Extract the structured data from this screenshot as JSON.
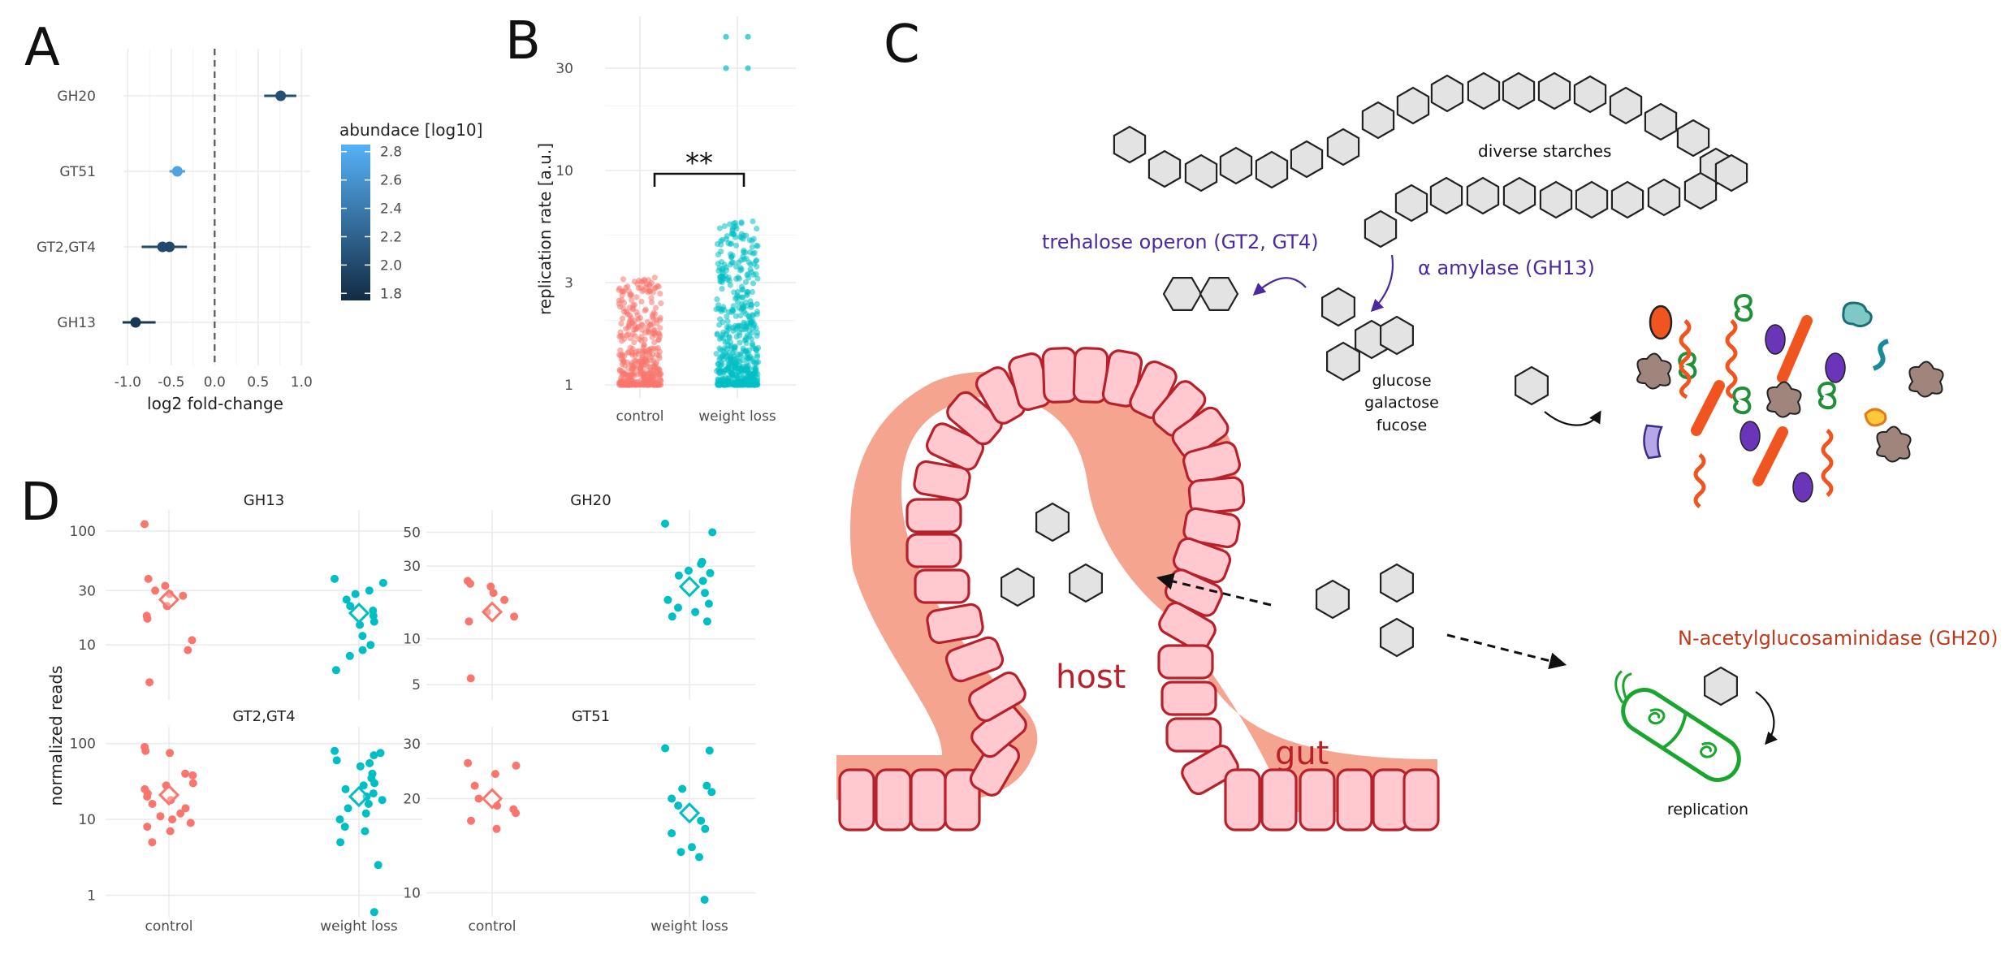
{
  "panels": {
    "A": {
      "letter": "A",
      "chart_data": {
        "type": "scatter",
        "xlabel": "log2 fold-change",
        "categories": [
          "GH20",
          "GT51",
          "GT2,GT4",
          "GH13"
        ],
        "xlim": [
          -1.05,
          1.1
        ],
        "x_ticks": [
          "-1.0",
          "-0.5",
          "0.0",
          "0.5",
          "1.0"
        ],
        "x_tick_values": [
          -1.0,
          -0.5,
          0.0,
          0.5,
          1.0
        ],
        "reference_line": 0,
        "points": [
          {
            "category": "GH20",
            "x": 0.76,
            "lo": 0.57,
            "hi": 0.94,
            "abundance": 2.05
          },
          {
            "category": "GT51",
            "x": -0.43,
            "lo": -0.52,
            "hi": -0.34,
            "abundance": 2.72
          },
          {
            "category": "GT2,GT4",
            "x": -0.6,
            "lo": -0.84,
            "hi": -0.32,
            "abundance": 2.0
          },
          {
            "category": "GT2,GT4",
            "x": -0.52,
            "lo": -0.84,
            "hi": -0.32,
            "abundance": 2.0
          },
          {
            "category": "GH13",
            "x": -0.91,
            "lo": -1.06,
            "hi": -0.68,
            "abundance": 1.85
          }
        ],
        "legend": {
          "title": "abundace [log10]",
          "ticks": [
            "2.8",
            "2.6",
            "2.4",
            "2.2",
            "2.0",
            "1.8"
          ],
          "tick_values": [
            2.8,
            2.6,
            2.4,
            2.2,
            2.0,
            1.8
          ],
          "range": [
            1.75,
            2.85
          ],
          "placement": "right",
          "colors": [
            "#132b43",
            "#56b1f7"
          ]
        },
        "grid": true
      }
    },
    "B": {
      "letter": "B",
      "chart_data": {
        "type": "scatter",
        "ylabel": "replication rate [a.u.]",
        "categories": [
          "control",
          "weight loss"
        ],
        "y_scale": "log10",
        "ylim": [
          0.95,
          48
        ],
        "y_ticks": [
          "1",
          "3",
          "10",
          "30"
        ],
        "y_tick_values": [
          1,
          3,
          10,
          30
        ],
        "series": [
          {
            "name": "control",
            "color": "#f8766d",
            "n": 420,
            "median": 1.3,
            "max": 3.2,
            "min": 1.0
          },
          {
            "name": "weight loss",
            "color": "#00bfc4",
            "n": 560,
            "median": 1.4,
            "max": 5.8,
            "min": 1.0,
            "outliers": [
              42,
              42,
              30,
              30
            ]
          }
        ],
        "significance": "**",
        "grid": true
      }
    },
    "C": {
      "letter": "C",
      "labels": {
        "starches": "diverse starches",
        "trehalose": "trehalose operon (GT2, GT4)",
        "amylase": "α amylase (GH13)",
        "glucose": "glucose",
        "galactose": "galactose",
        "fucose": "fucose",
        "host": "host",
        "gut": "gut",
        "nag": "N-acetylglucosaminidase (GH20)",
        "replication": "replication"
      },
      "colors": {
        "enzyme": "#4b2aa1",
        "gut_red": "#b8212b",
        "gut_fill": "#ffc9cf",
        "gut_halo": "#f4a38f",
        "nag": "#c0391b",
        "bacterium": "#1aa52e"
      }
    },
    "D": {
      "letter": "D",
      "ylabel": "normalized reads",
      "chart_data": [
        {
          "type": "scatter",
          "title": "GH13",
          "categories": [
            "control",
            "weight loss"
          ],
          "y_scale": "log10",
          "ylim": [
            4,
            130
          ],
          "y_ticks": [
            "10",
            "30",
            "100"
          ],
          "y_tick_values": [
            10,
            30,
            100
          ],
          "series": [
            {
              "name": "control",
              "mean": 25,
              "values": [
                115,
                38,
                33,
                30,
                28,
                27,
                22,
                18,
                17,
                11,
                9,
                4.7
              ]
            },
            {
              "name": "weight loss",
              "mean": 19,
              "values": [
                38,
                35,
                30,
                28,
                25,
                22,
                20,
                18,
                16,
                15,
                12,
                10,
                9,
                8,
                6
              ]
            }
          ]
        },
        {
          "type": "scatter",
          "title": "GH20",
          "categories": [
            "control",
            "weight loss"
          ],
          "y_scale": "log10",
          "ylim": [
            4.6,
            62
          ],
          "y_ticks": [
            "5",
            "10",
            "30",
            "50"
          ],
          "y_tick_values": [
            5,
            10,
            30,
            50
          ],
          "series": [
            {
              "name": "control",
              "mean": 15,
              "values": [
                24,
                23,
                22,
                20,
                18,
                15,
                14,
                13,
                5.5
              ]
            },
            {
              "name": "weight loss",
              "mean": 22,
              "values": [
                57,
                50,
                32,
                31,
                28,
                27,
                26,
                24,
                20,
                18,
                17,
                16,
                15,
                14,
                13
              ]
            }
          ]
        },
        {
          "type": "scatter",
          "title": "GT2,GT4",
          "categories": [
            "control",
            "weight loss"
          ],
          "y_scale": "log10",
          "ylim": [
            0.7,
            130
          ],
          "y_ticks": [
            "1",
            "10",
            "100"
          ],
          "y_tick_values": [
            1,
            10,
            100
          ],
          "series": [
            {
              "name": "control",
              "mean": 21,
              "values": [
                90,
                80,
                75,
                40,
                38,
                30,
                28,
                25,
                22,
                20,
                18,
                16,
                14,
                12,
                11,
                10,
                9,
                8,
                7,
                5
              ]
            },
            {
              "name": "weight loss",
              "mean": 20,
              "values": [
                80,
                75,
                70,
                60,
                55,
                50,
                40,
                35,
                30,
                28,
                25,
                22,
                20,
                18,
                16,
                14,
                12,
                10,
                8,
                7,
                5,
                2.5,
                0.6
              ]
            }
          ]
        },
        {
          "type": "scatter",
          "title": "GT51",
          "categories": [
            "control",
            "weight loss"
          ],
          "y_scale": "log10",
          "ylim": [
            9,
            32
          ],
          "y_ticks": [
            "10",
            "20",
            "30"
          ],
          "y_tick_values": [
            10,
            20,
            30
          ],
          "series": [
            {
              "name": "control",
              "mean": 20,
              "values": [
                26,
                25.5,
                24,
                22,
                20,
                19,
                18.5,
                18,
                17,
                16
              ]
            },
            {
              "name": "weight loss",
              "mean": 18,
              "values": [
                29,
                28.5,
                22,
                21.5,
                21,
                20,
                19,
                17,
                16,
                15.5,
                14,
                13.5,
                13,
                9.5
              ]
            }
          ]
        }
      ]
    }
  }
}
